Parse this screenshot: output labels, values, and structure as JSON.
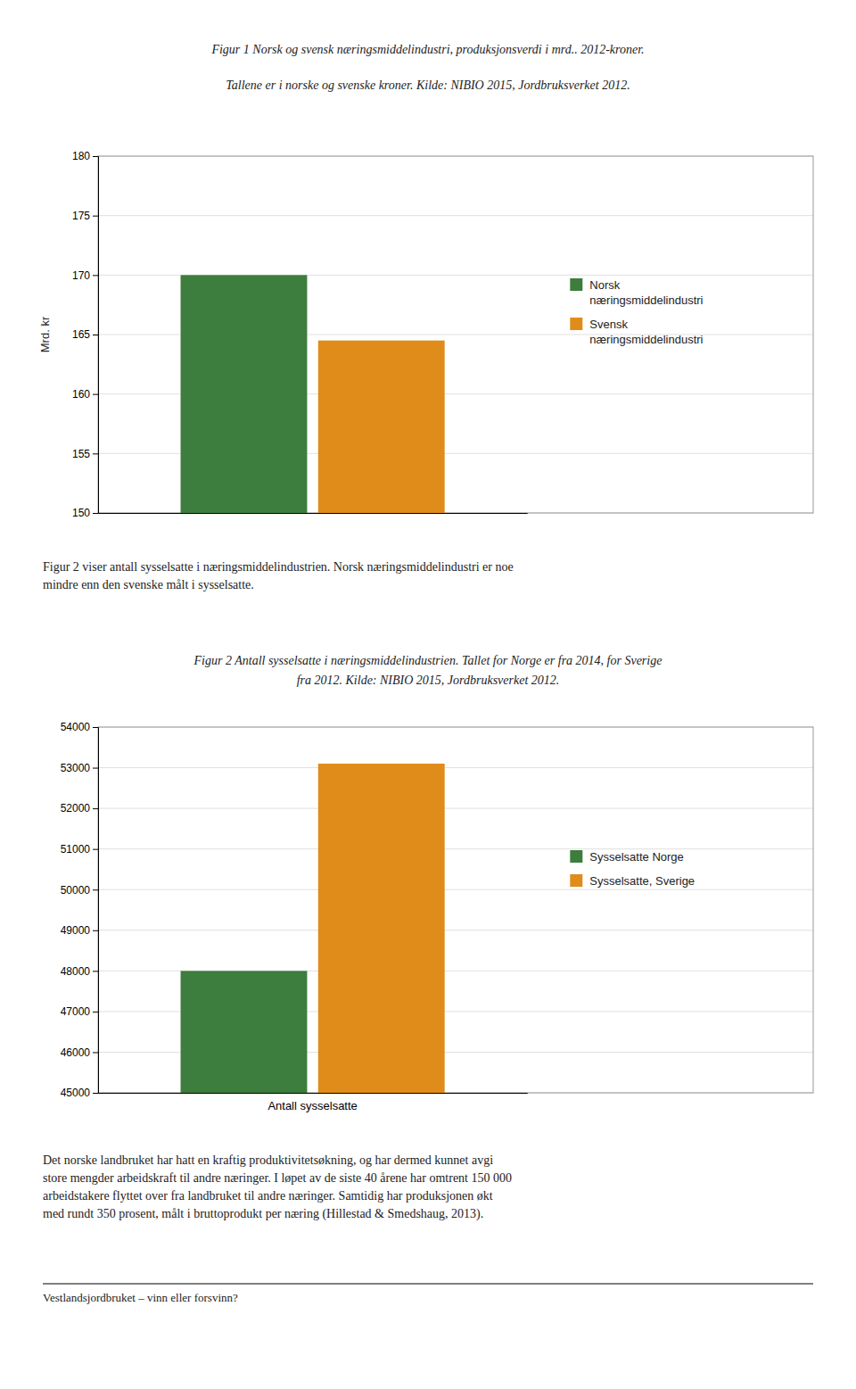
{
  "chart_data": [
    {
      "type": "bar",
      "title": "Figur 1 Norsk og svensk næringsmiddelindustri, produksjonsverdi i mrd.. 2012-kroner.",
      "subtitle": "Tallene er i norske og svenske kroner. Kilde: NIBIO 2015, Jordbruksverket 2012.",
      "ylabel": "Mrd. kr",
      "categories": [
        null
      ],
      "series": [
        {
          "name": "Norsk\nnæringsmiddelindustri",
          "color": "#3d7d3d",
          "values": [
            170
          ]
        },
        {
          "name": "Svensk\nnæringsmiddelindustri",
          "color": "#e08c1a",
          "values": [
            164.5
          ]
        }
      ],
      "ylim": [
        150,
        180
      ],
      "yticks": [
        150,
        155,
        160,
        165,
        170,
        175,
        180
      ],
      "grid": true,
      "legend": "right",
      "tick_labels": "y",
      "annotations": [
        "Figur 2 viser antall sysselsatte i næringsmiddelindustrien. Norsk næringsmiddelindustri er noe\nmindre enn den svenske målt i sysselsatte."
      ]
    },
    {
      "type": "bar",
      "title": "Figur 2 Antall sysselsatte i næringsmiddelindustrien. Tallet for Norge er fra 2014, for Sverige\nfra 2012.  Kilde: NIBIO 2015, Jordbruksverket 2012.",
      "categories": [
        "Antall sysselsatte"
      ],
      "series": [
        {
          "name": "Sysselsatte Norge",
          "color": "#3d7d3d",
          "values": [
            48000
          ]
        },
        {
          "name": "Sysselsatte, Sverige",
          "color": "#e08c1a",
          "values": [
            53100
          ]
        }
      ],
      "ylim": [
        45000,
        54000
      ],
      "yticks": [
        45000,
        46000,
        47000,
        48000,
        49000,
        50000,
        51000,
        52000,
        53000,
        54000
      ],
      "grid": true,
      "legend": "right",
      "annotations": [
        "Det norske landbruket har hatt en kraftig produktivitetsøkning, og har dermed kunnet avgi\nstore mengder arbeidskraft til andre næringer. I løpet av de siste 40 årene har omtrent 150 000\narbeidstakere flyttet over fra landbruket til andre næringer. Samtidig har produksjonen økt\nmed rundt 350 prosent, målt i bruttoprodukt per næring (Hillestad & Smedshaug, 2013)."
      ]
    }
  ],
  "footer": "Vestlandsjordbruket – vinn eller forsvinn?"
}
